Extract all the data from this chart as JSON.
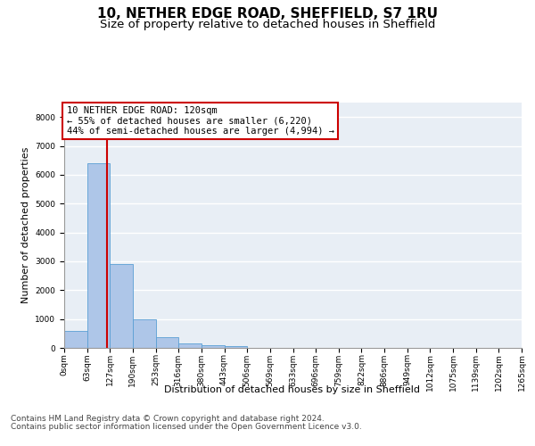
{
  "title1": "10, NETHER EDGE ROAD, SHEFFIELD, S7 1RU",
  "title2": "Size of property relative to detached houses in Sheffield",
  "xlabel": "Distribution of detached houses by size in Sheffield",
  "ylabel": "Number of detached properties",
  "bin_labels": [
    "0sqm",
    "63sqm",
    "127sqm",
    "190sqm",
    "253sqm",
    "316sqm",
    "380sqm",
    "443sqm",
    "506sqm",
    "569sqm",
    "633sqm",
    "696sqm",
    "759sqm",
    "822sqm",
    "886sqm",
    "949sqm",
    "1012sqm",
    "1075sqm",
    "1139sqm",
    "1202sqm",
    "1265sqm"
  ],
  "bar_heights": [
    580,
    6400,
    2920,
    980,
    360,
    150,
    90,
    55,
    0,
    0,
    0,
    0,
    0,
    0,
    0,
    0,
    0,
    0,
    0,
    0
  ],
  "bar_color": "#aec6e8",
  "bar_edge_color": "#5a9fd4",
  "vline_color": "#cc0000",
  "annotation_box_text": "10 NETHER EDGE ROAD: 120sqm\n← 55% of detached houses are smaller (6,220)\n44% of semi-detached houses are larger (4,994) →",
  "annotation_box_color": "#cc0000",
  "annotation_box_fill": "#ffffff",
  "ylim": [
    0,
    8500
  ],
  "yticks": [
    0,
    1000,
    2000,
    3000,
    4000,
    5000,
    6000,
    7000,
    8000
  ],
  "background_color": "#e8eef5",
  "grid_color": "#ffffff",
  "footer1": "Contains HM Land Registry data © Crown copyright and database right 2024.",
  "footer2": "Contains public sector information licensed under the Open Government Licence v3.0.",
  "title1_fontsize": 11,
  "title2_fontsize": 9.5,
  "axis_label_fontsize": 8,
  "tick_fontsize": 6.5,
  "annotation_fontsize": 7.5,
  "footer_fontsize": 6.5,
  "ylabel_fontsize": 8
}
